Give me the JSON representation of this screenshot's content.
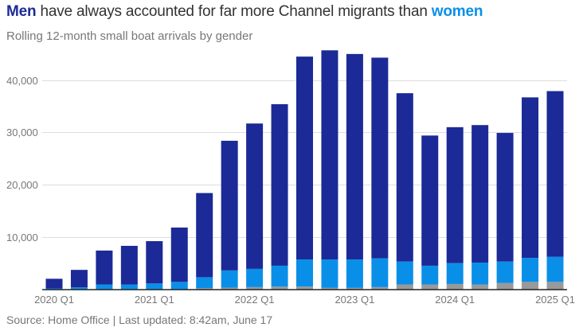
{
  "title": {
    "men_word": "Men",
    "middle": " have always accounted for far more Channel migrants than ",
    "women_word": "women"
  },
  "subtitle": "Rolling 12-month small boat arrivals by gender",
  "source": "Source: Home Office | Last updated: 8:42am, June 17",
  "colors": {
    "men": "#1b2a96",
    "women": "#0a8fe8",
    "unknown": "#999999",
    "grid": "#dddddd",
    "axis": "#222222"
  },
  "chart_data": {
    "type": "bar",
    "stacked": true,
    "title": "Men have always accounted for far more Channel migrants than women",
    "subtitle": "Rolling 12-month small boat arrivals by gender",
    "xlabel": "",
    "ylabel": "",
    "ylim": [
      0,
      46000
    ],
    "yticks": [
      10000,
      20000,
      30000,
      40000
    ],
    "ytick_labels": [
      "10,000",
      "20,000",
      "30,000",
      "40,000"
    ],
    "grid": true,
    "legend": "none (title words colored)",
    "categories": [
      "2020 Q1",
      "2020 Q2",
      "2020 Q3",
      "2020 Q4",
      "2021 Q1",
      "2021 Q2",
      "2021 Q3",
      "2021 Q4",
      "2022 Q1",
      "2022 Q2",
      "2022 Q3",
      "2022 Q4",
      "2023 Q1",
      "2023 Q2",
      "2023 Q3",
      "2023 Q4",
      "2024 Q1",
      "2024 Q2",
      "2024 Q3",
      "2024 Q4",
      "2025 Q1"
    ],
    "xtick_labels": [
      {
        "index": 0,
        "label": "2020 Q1"
      },
      {
        "index": 4,
        "label": "2021 Q1"
      },
      {
        "index": 8,
        "label": "2022 Q1"
      },
      {
        "index": 12,
        "label": "2023 Q1"
      },
      {
        "index": 16,
        "label": "2024 Q1"
      },
      {
        "index": 20,
        "label": "2025 Q1"
      }
    ],
    "series": [
      {
        "name": "Unknown",
        "key": "unknown",
        "values": [
          0,
          0,
          0,
          0,
          0,
          0,
          200,
          300,
          400,
          500,
          500,
          250,
          250,
          400,
          900,
          900,
          1000,
          900,
          1200,
          1400,
          1400
        ]
      },
      {
        "name": "Women",
        "key": "women",
        "values": [
          150,
          350,
          900,
          900,
          1100,
          1400,
          2100,
          3300,
          3500,
          4000,
          5200,
          5450,
          5450,
          5500,
          4400,
          3600,
          4000,
          4200,
          4100,
          4600,
          4800
        ]
      },
      {
        "name": "Men",
        "key": "men",
        "values": [
          1850,
          3350,
          6500,
          7400,
          8100,
          10400,
          16100,
          24800,
          27800,
          30900,
          38800,
          40000,
          39300,
          38400,
          32200,
          24900,
          26000,
          26300,
          24600,
          30700,
          31700
        ]
      }
    ],
    "totals": [
      2000,
      3700,
      7400,
      8300,
      9200,
      11800,
      18400,
      28400,
      31700,
      35400,
      44500,
      45700,
      45000,
      44300,
      37500,
      29400,
      31000,
      31400,
      29900,
      36700,
      37900
    ]
  }
}
